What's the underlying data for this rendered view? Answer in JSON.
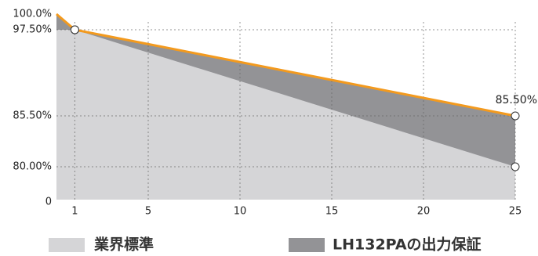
{
  "chart_data": {
    "type": "area",
    "xlim": [
      0,
      25
    ],
    "xticks": [
      1,
      5,
      10,
      15,
      20,
      25
    ],
    "ylim": [
      0,
      100
    ],
    "yticks": [
      {
        "value": 100,
        "label": "100.0%"
      },
      {
        "value": 97.5,
        "label": "97.50%"
      },
      {
        "value": 85.5,
        "label": "85.50%"
      },
      {
        "value": 80,
        "label": "80.00%"
      },
      0
    ],
    "grid": true,
    "line_color": "#f39a1e",
    "series": [
      {
        "name": "LH132PAの出力保証",
        "color": "#939396",
        "x": [
          0,
          1,
          25
        ],
        "values": [
          100,
          97.5,
          85.5
        ],
        "value_labels": [
          null,
          null,
          "85.50%"
        ]
      },
      {
        "name": "業界標準",
        "color": "#d5d5d7",
        "x": [
          0,
          1,
          25
        ],
        "values": [
          97.5,
          97.5,
          80
        ]
      }
    ],
    "legend": "bottom"
  }
}
